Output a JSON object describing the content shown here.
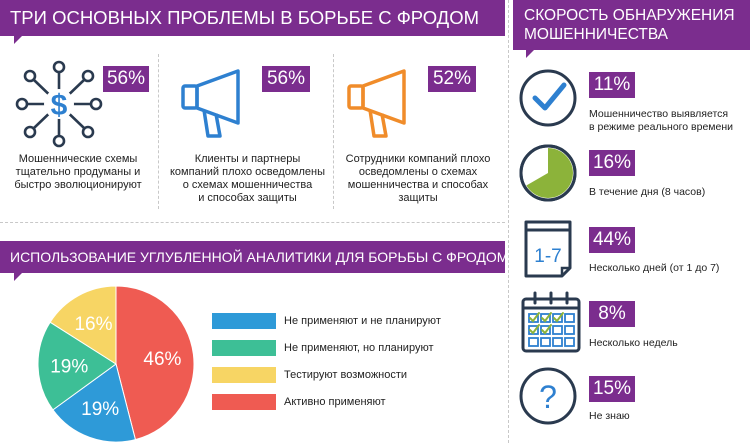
{
  "problems": {
    "title": "ТРИ ОСНОВНЫХ ПРОБЛЕМЫ В БОРЬБЕ С ФРОДОМ",
    "items": [
      {
        "percent": "56%",
        "text_lines": [
          "Мошеннические схемы",
          "тщательно продуманы и",
          "быстро эволюционируют"
        ],
        "icon": "fraud-network-icon"
      },
      {
        "percent": "56%",
        "text_lines": [
          "Клиенты и партнеры",
          "компаний плохо осведомлены",
          "о схемах мошенничества",
          "и способах защиты"
        ],
        "icon": "megaphone-blue-icon"
      },
      {
        "percent": "52%",
        "text_lines": [
          "Сотрудники компаний плохо",
          "осведомлены о схемах",
          "мошенничества и способах",
          "защиты"
        ],
        "icon": "megaphone-orange-icon"
      }
    ]
  },
  "analytics": {
    "title": "ИСПОЛЬЗОВАНИЕ УГЛУБЛЕННОЙ АНАЛИТИКИ ДЛЯ БОРЬБЫ С ФРОДОМ",
    "legend": [
      {
        "label": "Не применяют и не планируют",
        "color": "#2e9ad8"
      },
      {
        "label": "Не применяют, но планируют",
        "color": "#3dbf96"
      },
      {
        "label": "Тестируют возможности",
        "color": "#f7d564"
      },
      {
        "label": "Активно применяют",
        "color": "#ef5b52"
      }
    ]
  },
  "chart_data": {
    "type": "pie",
    "categories": [
      "Активно применяют",
      "Не применяют и не планируют",
      "Не применяют, но планируют",
      "Тестируют возможности"
    ],
    "values": [
      46,
      19,
      19,
      16
    ],
    "labels": [
      "46%",
      "19%",
      "19%",
      "16%"
    ],
    "colors": [
      "#ef5b52",
      "#2e9ad8",
      "#3dbf96",
      "#f7d564"
    ]
  },
  "speed": {
    "title_lines": [
      "СКОРОСТЬ ОБНАРУЖЕНИЯ",
      "МОШЕННИЧЕСТВА"
    ],
    "items": [
      {
        "percent": "11%",
        "text_lines": [
          "Мошенничество выявляется",
          "в режиме реального времени"
        ],
        "icon": "checkmark-circle-icon"
      },
      {
        "percent": "16%",
        "text_lines": [
          "В течение дня (8 часов)"
        ],
        "icon": "clock-pie-icon"
      },
      {
        "percent": "44%",
        "text_lines": [
          "Несколько дней (от 1 до 7)"
        ],
        "icon": "calendar-page-icon",
        "icon_text": "1-7"
      },
      {
        "percent": "8%",
        "text_lines": [
          "Несколько недель"
        ],
        "icon": "calendar-grid-icon"
      },
      {
        "percent": "15%",
        "text_lines": [
          "Не знаю"
        ],
        "icon": "question-circle-icon",
        "icon_text": "?"
      }
    ]
  },
  "colors": {
    "purple": "#7b2d8e",
    "blue": "#2e80d0",
    "orange": "#f08c2a",
    "green": "#8cb33a",
    "dark": "#2a3a4f"
  }
}
